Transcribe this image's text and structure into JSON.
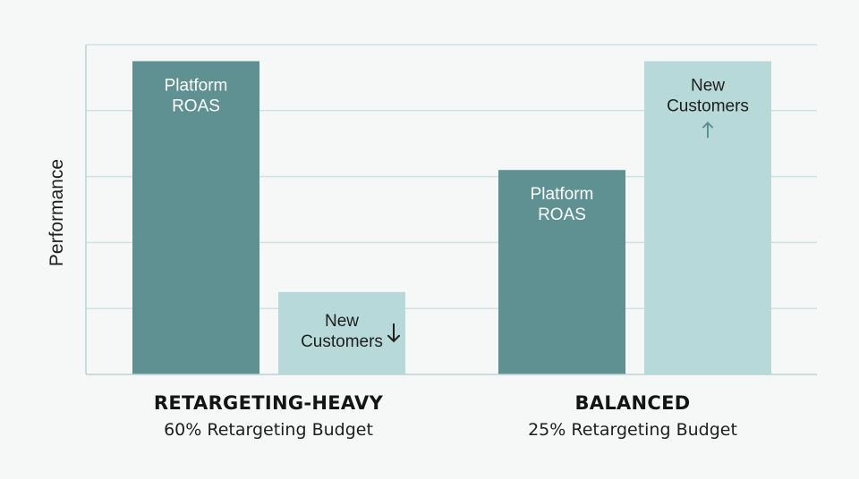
{
  "chart_data": {
    "type": "bar",
    "ylabel": "Performance",
    "ylim": [
      0,
      100
    ],
    "grid": true,
    "groups": [
      {
        "title": "RETARGETING-HEAVY",
        "subtitle": "60% Retargeting Budget",
        "bars": [
          {
            "series": "Platform ROAS",
            "label_lines": [
              "Platform",
              "ROAS"
            ],
            "value": 95,
            "trend": ""
          },
          {
            "series": "New Customers",
            "label_lines": [
              "New",
              "Customers"
            ],
            "value": 25,
            "trend": "down"
          }
        ]
      },
      {
        "title": "BALANCED",
        "subtitle": "25% Retargeting Budget",
        "bars": [
          {
            "series": "Platform ROAS",
            "label_lines": [
              "Platform",
              "ROAS"
            ],
            "value": 62,
            "trend": ""
          },
          {
            "series": "New Customers",
            "label_lines": [
              "New",
              "Customers"
            ],
            "value": 95,
            "trend": "up"
          }
        ]
      }
    ],
    "colors": {
      "Platform ROAS": "#5f9193",
      "New Customers": "#b8d9d9",
      "platform_text": "#ffffff",
      "customers_text": "#1e1e1e",
      "arrow_down": "#1e1e1e",
      "arrow_up": "#5f9193",
      "grid": "#cfe3e1",
      "axis": "#b9d4d2"
    }
  }
}
